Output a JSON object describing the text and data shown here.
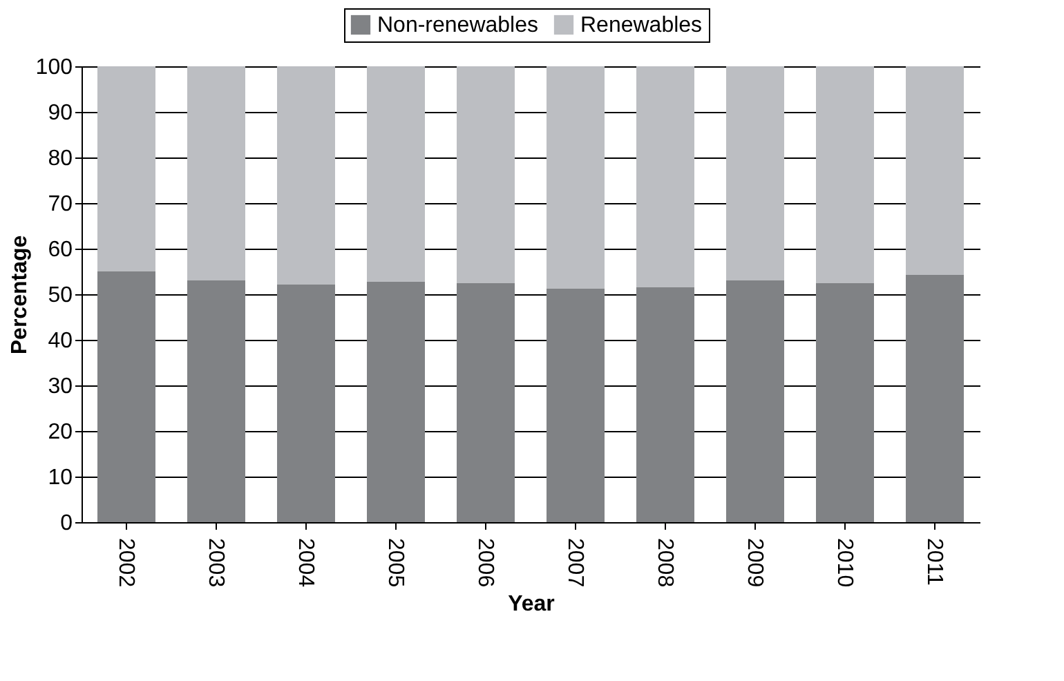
{
  "chart_data": {
    "type": "bar",
    "stacked": true,
    "xlabel": "Year",
    "ylabel": "Percentage",
    "categories": [
      "2002",
      "2003",
      "2004",
      "2005",
      "2006",
      "2007",
      "2008",
      "2009",
      "2010",
      "2011"
    ],
    "series": [
      {
        "name": "Non-renewables",
        "color": "#808285",
        "values": [
          55,
          53.1,
          52.2,
          52.8,
          52.5,
          51.3,
          51.6,
          53.1,
          52.5,
          54.3
        ]
      },
      {
        "name": "Renewables",
        "color": "#bcbec2",
        "values": [
          45,
          46.9,
          47.8,
          47.2,
          47.5,
          48.7,
          48.4,
          46.9,
          47.5,
          45.7
        ]
      }
    ],
    "ylim": [
      0,
      100
    ],
    "yticks": [
      0,
      10,
      20,
      30,
      40,
      50,
      60,
      70,
      80,
      90,
      100
    ],
    "grid": "y",
    "legend": "top"
  }
}
